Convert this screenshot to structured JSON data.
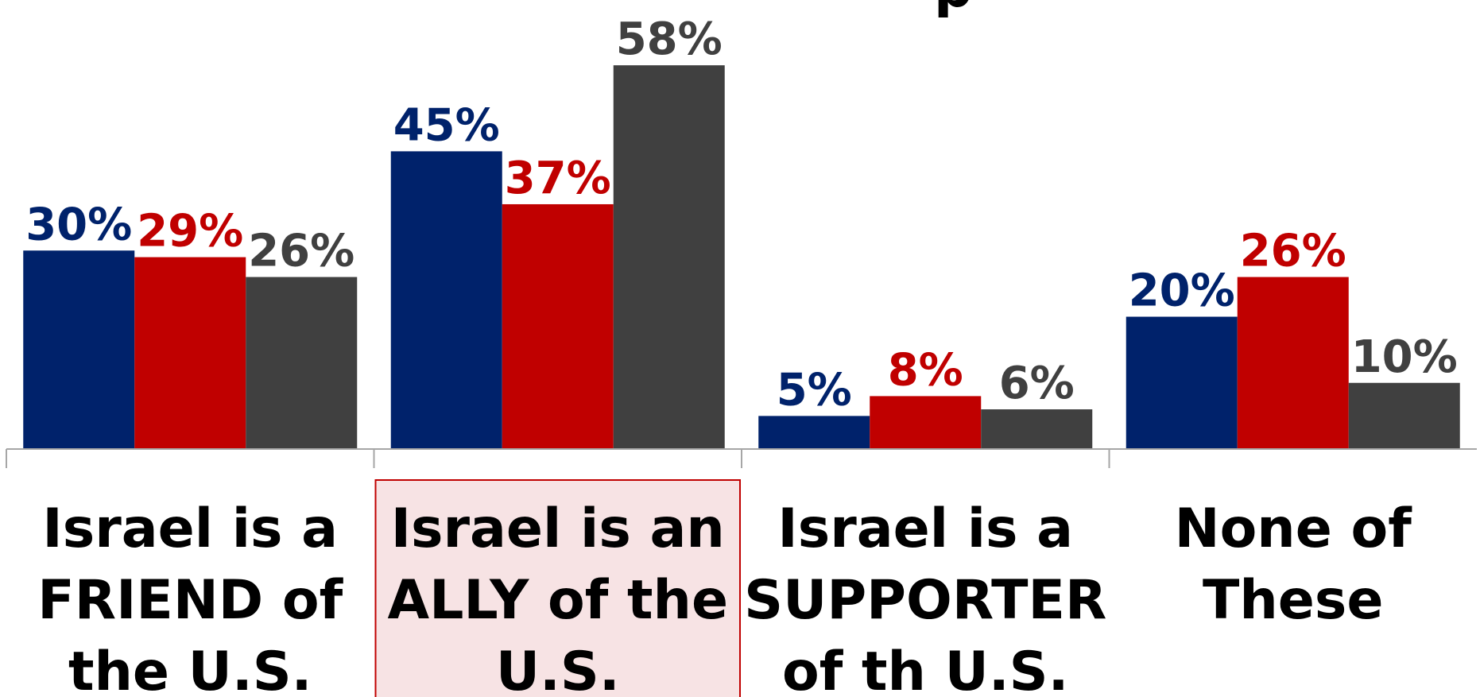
{
  "chart_data": {
    "type": "bar",
    "title_fragment": "p",
    "categories": [
      [
        "Israel is a",
        "FRIEND of",
        "the U.S."
      ],
      [
        "Israel is an",
        "ALLY of the",
        "U.S."
      ],
      [
        "Israel is a",
        "SUPPORTER",
        "of th U.S."
      ],
      [
        "None of",
        "These"
      ]
    ],
    "highlighted_category": 1,
    "series": [
      {
        "values": [
          30,
          45,
          5,
          20
        ],
        "labels": [
          "30%",
          "45%",
          "5%",
          "20%"
        ],
        "color": "#00226b"
      },
      {
        "values": [
          29,
          37,
          8,
          26
        ],
        "labels": [
          "29%",
          "37%",
          "8%",
          "26%"
        ],
        "color": "#c00000"
      },
      {
        "values": [
          26,
          58,
          6,
          10
        ],
        "labels": [
          "26%",
          "58%",
          "6%",
          "10%"
        ],
        "color": "#404040"
      }
    ],
    "ylim": [
      0,
      58
    ],
    "grid": false,
    "legend": "none",
    "highlight_fill": "#f7e3e4",
    "highlight_stroke": "#c00000",
    "axis_color": "#a6a6a6"
  }
}
